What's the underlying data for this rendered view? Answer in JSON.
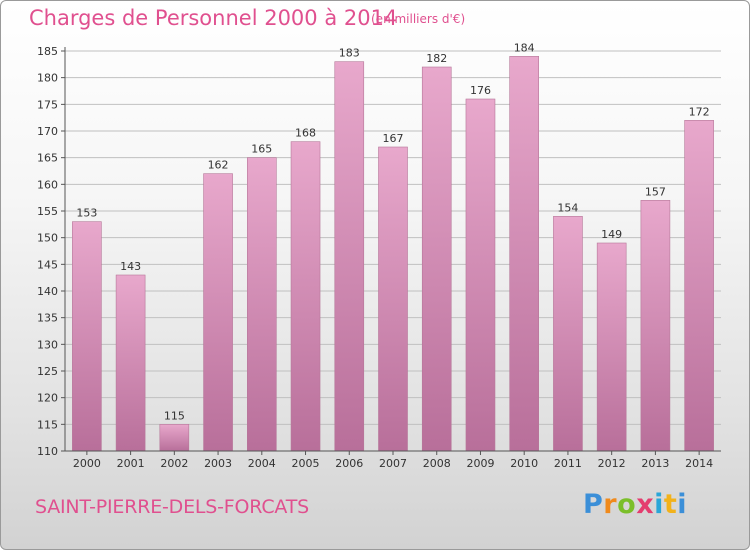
{
  "title": "Charges de Personnel 2000 à 2014",
  "subtitle": "(en milliers d'€)",
  "commune": "SAINT-PIERRE-DELS-FORCATS",
  "logo": {
    "letters": [
      "P",
      "r",
      "o",
      "x",
      "i",
      "t",
      "i"
    ]
  },
  "colors": {
    "title": "#e0508f",
    "bar_top": "#e8a8cc",
    "bar_bottom": "#b86f9a",
    "grid": "#c0c0c0"
  },
  "chart_data": {
    "type": "bar",
    "categories": [
      "2000",
      "2001",
      "2002",
      "2003",
      "2004",
      "2005",
      "2006",
      "2007",
      "2008",
      "2009",
      "2010",
      "2011",
      "2012",
      "2013",
      "2014"
    ],
    "values": [
      153,
      143,
      115,
      162,
      165,
      168,
      183,
      167,
      182,
      176,
      184,
      154,
      149,
      157,
      172
    ],
    "ylim": [
      110,
      185
    ],
    "yticks": [
      110,
      115,
      120,
      125,
      130,
      135,
      140,
      145,
      150,
      155,
      160,
      165,
      170,
      175,
      180,
      185
    ],
    "grid": true,
    "xlabel": "",
    "ylabel": ""
  }
}
